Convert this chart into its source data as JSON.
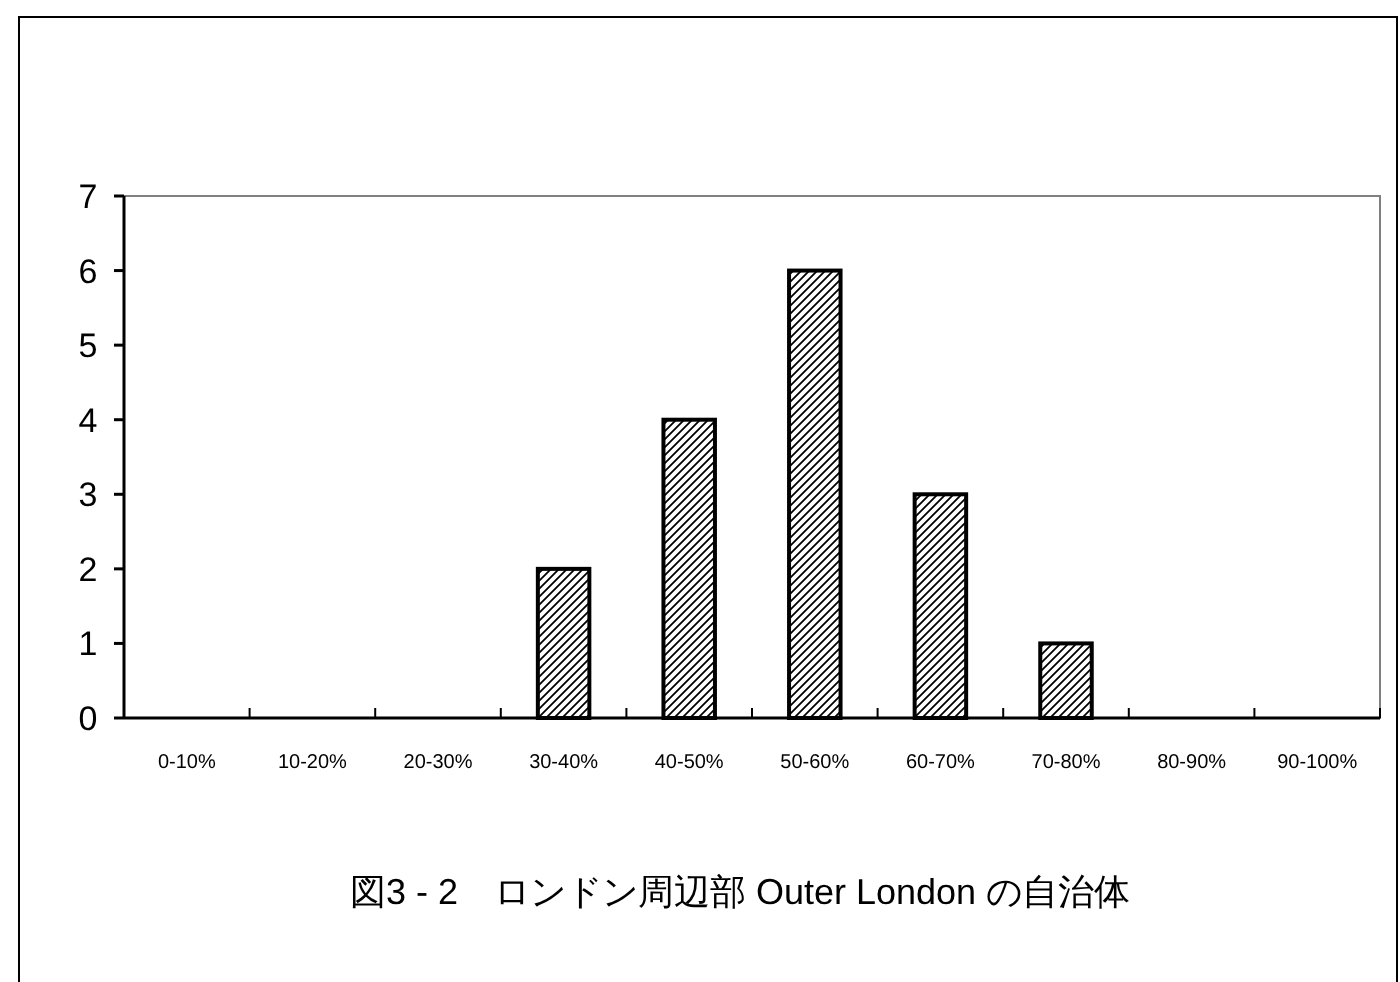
{
  "chart_data": {
    "type": "bar",
    "title": "図3 - 2　ロンドン周辺部 Outer London の自治体",
    "categories": [
      "0-10%",
      "10-20%",
      "20-30%",
      "30-40%",
      "40-50%",
      "50-60%",
      "60-70%",
      "70-80%",
      "80-90%",
      "90-100%"
    ],
    "values": [
      0,
      0,
      0,
      2,
      4,
      6,
      3,
      1,
      0,
      0
    ],
    "color": "#000000",
    "ylim": [
      0,
      7
    ],
    "yticks": [
      0,
      1,
      2,
      3,
      4,
      5,
      6,
      7
    ]
  }
}
